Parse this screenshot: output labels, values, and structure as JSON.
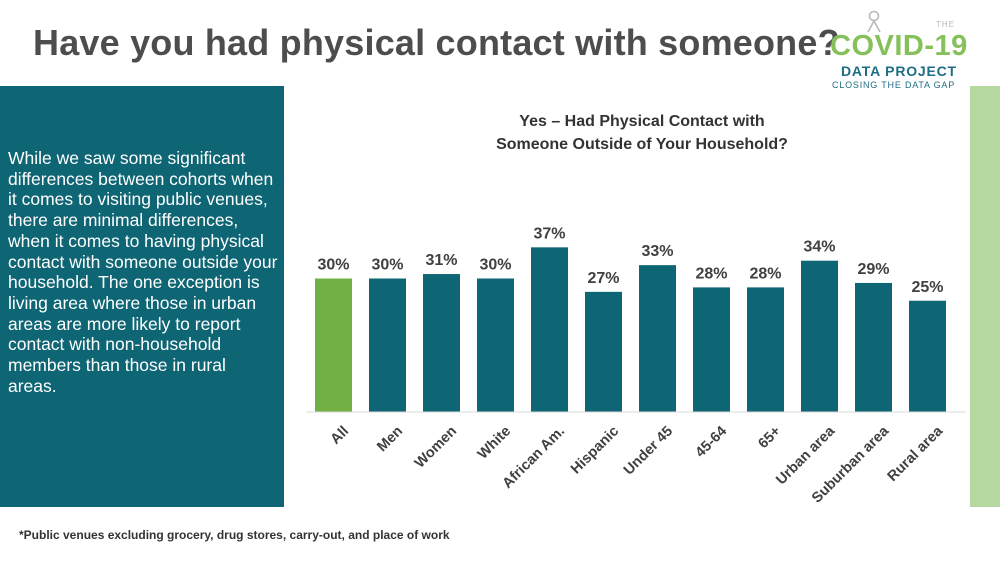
{
  "page": {
    "title": "Have you had physical contact with someone?",
    "sidebar_text": "While we saw some significant differences between cohorts when it comes to visiting public venues, there are minimal differences, when it comes to having physical contact with someone outside your household. The one exception is living area where those in urban areas are more likely to report contact with non-household members than those in rural areas.",
    "footnote": "*Public venues excluding grocery, drug stores, carry-out, and place of work",
    "logo": {
      "the": "THE",
      "main": "COVID-19",
      "sub1": "DATA PROJECT",
      "sub2": "CLOSING THE DATA GAP"
    }
  },
  "colors": {
    "bar": "#0e6574",
    "highlight_bar": "#72b043",
    "sidebar": "#0e6574",
    "right_bar": "#b5d7a0",
    "title": "#4d4d4d"
  },
  "chart_data": {
    "type": "bar",
    "title_lines": [
      "Yes – Had Physical Contact with",
      "Someone Outside of Your Household?"
    ],
    "categories": [
      "All",
      "Men",
      "Women",
      "White",
      "African Am.",
      "Hispanic",
      "Under 45",
      "45-64",
      "65+",
      "Urban area",
      "Suburban area",
      "Rural area"
    ],
    "values": [
      30,
      30,
      31,
      30,
      37,
      27,
      33,
      28,
      28,
      34,
      29,
      25
    ],
    "value_labels": [
      "30%",
      "30%",
      "31%",
      "30%",
      "37%",
      "27%",
      "33%",
      "28%",
      "28%",
      "34%",
      "29%",
      "25%"
    ],
    "highlight_index": 0,
    "ylim": [
      0,
      40
    ],
    "grid": false
  }
}
